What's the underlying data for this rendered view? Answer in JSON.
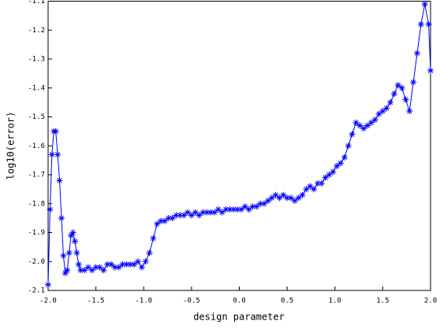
{
  "chart_data": {
    "type": "line",
    "xlabel": "design parameter",
    "ylabel": "log10(error)",
    "x": [
      -2.0,
      -1.98,
      -1.96,
      -1.94,
      -1.92,
      -1.9,
      -1.88,
      -1.86,
      -1.84,
      -1.82,
      -1.8,
      -1.78,
      -1.76,
      -1.74,
      -1.72,
      -1.7,
      -1.68,
      -1.66,
      -1.62,
      -1.58,
      -1.54,
      -1.5,
      -1.46,
      -1.42,
      -1.38,
      -1.34,
      -1.3,
      -1.26,
      -1.22,
      -1.18,
      -1.14,
      -1.1,
      -1.06,
      -1.02,
      -0.98,
      -0.94,
      -0.9,
      -0.86,
      -0.82,
      -0.78,
      -0.74,
      -0.7,
      -0.66,
      -0.62,
      -0.58,
      -0.54,
      -0.5,
      -0.46,
      -0.42,
      -0.38,
      -0.34,
      -0.3,
      -0.26,
      -0.22,
      -0.18,
      -0.14,
      -0.1,
      -0.06,
      -0.02,
      0.02,
      0.06,
      0.1,
      0.14,
      0.18,
      0.22,
      0.26,
      0.3,
      0.34,
      0.38,
      0.42,
      0.46,
      0.5,
      0.54,
      0.58,
      0.62,
      0.66,
      0.7,
      0.74,
      0.78,
      0.82,
      0.86,
      0.9,
      0.94,
      0.98,
      1.02,
      1.06,
      1.1,
      1.14,
      1.18,
      1.22,
      1.26,
      1.3,
      1.34,
      1.38,
      1.42,
      1.46,
      1.5,
      1.54,
      1.58,
      1.62,
      1.66,
      1.7,
      1.74,
      1.78,
      1.82,
      1.86,
      1.9,
      1.94,
      1.98,
      2.0
    ],
    "series": [
      {
        "color": "#0000ff",
        "marker": "star",
        "values": [
          -2.08,
          -1.82,
          -1.63,
          -1.55,
          -1.55,
          -1.63,
          -1.72,
          -1.85,
          -1.98,
          -2.04,
          -2.03,
          -1.97,
          -1.91,
          -1.9,
          -1.93,
          -1.97,
          -2.01,
          -2.03,
          -2.03,
          -2.02,
          -2.03,
          -2.02,
          -2.02,
          -2.03,
          -2.01,
          -2.01,
          -2.02,
          -2.02,
          -2.01,
          -2.01,
          -2.01,
          -2.01,
          -2.0,
          -2.02,
          -2.0,
          -1.97,
          -1.92,
          -1.87,
          -1.86,
          -1.86,
          -1.85,
          -1.85,
          -1.84,
          -1.84,
          -1.84,
          -1.83,
          -1.84,
          -1.83,
          -1.84,
          -1.83,
          -1.83,
          -1.83,
          -1.83,
          -1.82,
          -1.83,
          -1.82,
          -1.82,
          -1.82,
          -1.82,
          -1.82,
          -1.81,
          -1.82,
          -1.81,
          -1.81,
          -1.8,
          -1.8,
          -1.79,
          -1.78,
          -1.77,
          -1.78,
          -1.77,
          -1.78,
          -1.78,
          -1.79,
          -1.78,
          -1.77,
          -1.75,
          -1.74,
          -1.75,
          -1.73,
          -1.73,
          -1.71,
          -1.7,
          -1.69,
          -1.67,
          -1.66,
          -1.64,
          -1.6,
          -1.56,
          -1.52,
          -1.53,
          -1.54,
          -1.53,
          -1.52,
          -1.51,
          -1.49,
          -1.48,
          -1.47,
          -1.45,
          -1.42,
          -1.39,
          -1.4,
          -1.44,
          -1.48,
          -1.38,
          -1.28,
          -1.18,
          -1.11,
          -1.18,
          -1.34
        ]
      }
    ],
    "xlim": [
      -2.0,
      2.0
    ],
    "xticks": [
      {
        "value": -2,
        "label": "-2.0"
      },
      -1.5,
      {
        "value": -1,
        "label": "-1.0"
      },
      -0.5,
      {
        "value": 0,
        "label": "0.0"
      },
      0.5,
      {
        "value": 1,
        "label": "1.0"
      },
      1.5,
      {
        "value": 2,
        "label": "2.0"
      }
    ],
    "ylim": [
      -2.1,
      -1.1
    ],
    "yticks": [
      -2.1,
      {
        "value": -2,
        "label": "-2.0"
      },
      -1.9,
      -1.8,
      -1.7,
      -1.6,
      -1.5,
      -1.4,
      -1.3,
      -1.2,
      -1.1
    ]
  }
}
